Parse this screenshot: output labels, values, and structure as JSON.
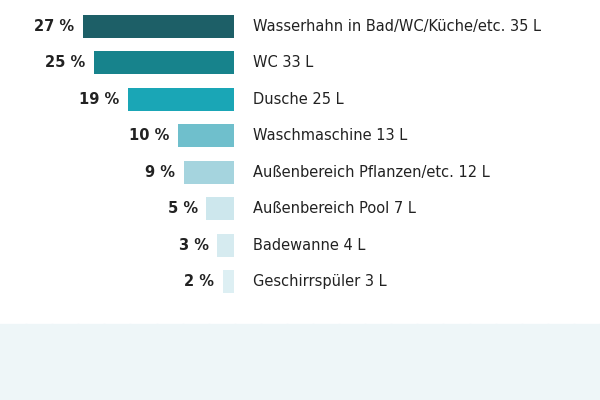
{
  "chart_data": {
    "type": "bar",
    "orientation": "horizontal",
    "categories": [
      "Wasserhahn in Bad/WC/Küche/etc. 35 L",
      "WC 33 L",
      "Dusche 25 L",
      "Waschmaschine 13 L",
      "Außenbereich Pflanzen/etc. 12 L",
      "Außenbereich Pool 7 L",
      "Badewanne 4 L",
      "Geschirrspüler 3 L"
    ],
    "values": [
      27,
      25,
      19,
      10,
      9,
      5,
      3,
      2
    ],
    "value_labels": [
      "27 %",
      "25 %",
      "19 %",
      "10 %",
      "9 %",
      "5 %",
      "3 %",
      "2 %"
    ],
    "colors": [
      "#1d5f67",
      "#17838c",
      "#1aa6b6",
      "#6fbfcc",
      "#a5d4de",
      "#cde7ed",
      "#d6ebf0",
      "#ddeff3"
    ],
    "xlim": [
      30,
      0
    ],
    "xticks": [],
    "data_labels": true,
    "tick_labels": false,
    "grid": false
  }
}
